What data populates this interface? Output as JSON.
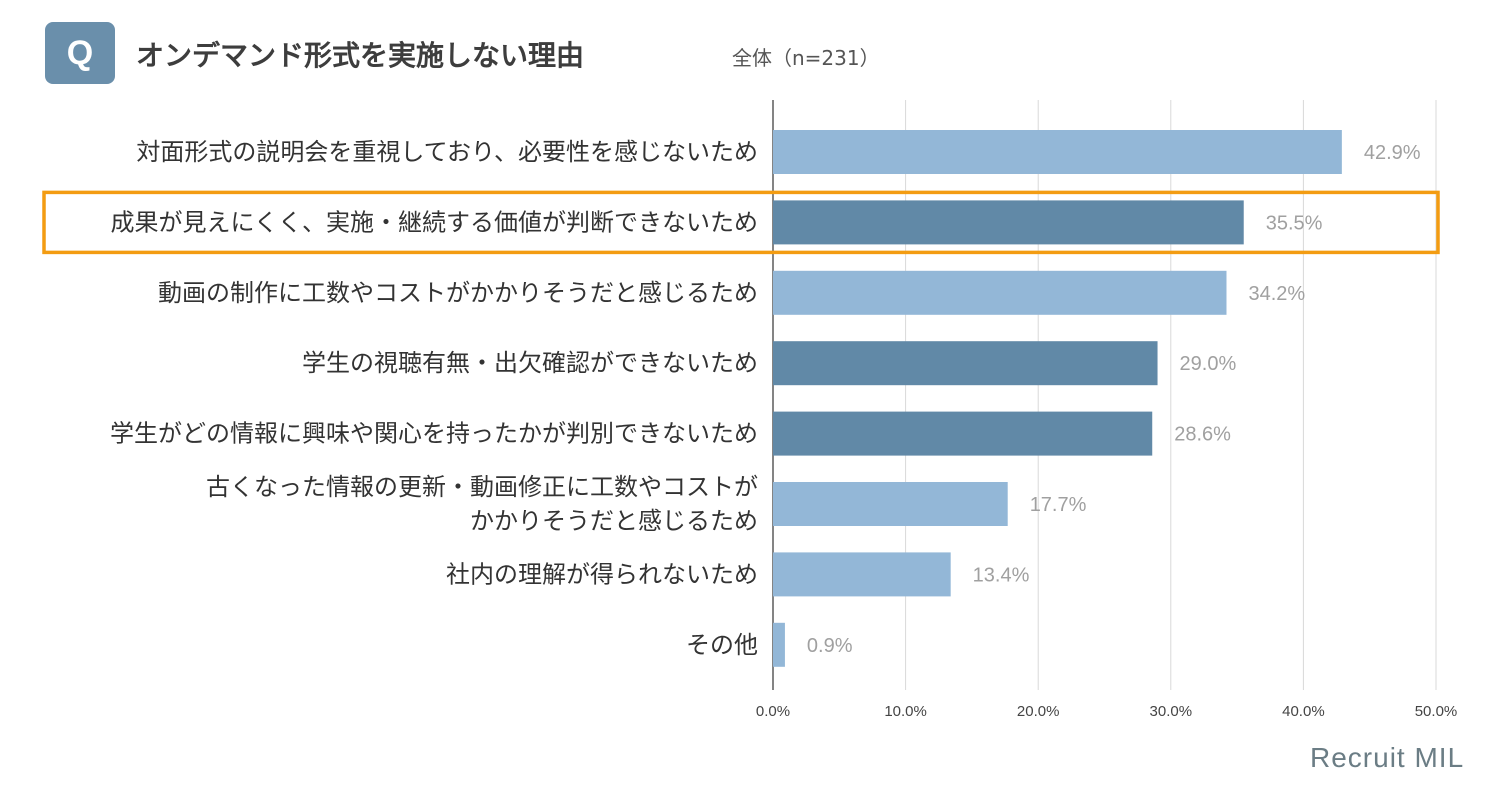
{
  "header": {
    "badge": "Q",
    "title": "オンデマンド形式を実施しない理由",
    "subtitle": "全体（n=231）"
  },
  "brand": "Recruit MIL",
  "colors": {
    "light_bar": "#93b7d7",
    "dark_bar": "#6189a7",
    "highlight": "#f39c12",
    "value_label": "#a0a0a0",
    "grid": "#d9d9d9"
  },
  "chart_data": {
    "type": "bar",
    "orientation": "horizontal",
    "categories": [
      [
        "対面形式の説明会を重視しており、必要性を感じないため"
      ],
      [
        "成果が見えにくく、実施・継続する価値が判断できないため"
      ],
      [
        "動画の制作に工数やコストがかかりそうだと感じるため"
      ],
      [
        "学生の視聴有無・出欠確認ができないため"
      ],
      [
        "学生がどの情報に興味や関心を持ったかが判別できないため"
      ],
      [
        "古くなった情報の更新・動画修正に工数やコストが",
        "かかりそうだと感じるため"
      ],
      [
        "社内の理解が得られないため"
      ],
      [
        "その他"
      ]
    ],
    "values": [
      42.9,
      35.5,
      34.2,
      29.0,
      28.6,
      17.7,
      13.4,
      0.9
    ],
    "value_labels": [
      "42.9%",
      "35.5%",
      "34.2%",
      "29.0%",
      "28.6%",
      "17.7%",
      "13.4%",
      "0.9%"
    ],
    "bar_shade": [
      "light",
      "dark",
      "light",
      "dark",
      "dark",
      "light",
      "light",
      "light"
    ],
    "highlighted_index": 1,
    "xlim": [
      0,
      50
    ],
    "xticks": [
      "0.0%",
      "10.0%",
      "20.0%",
      "30.0%",
      "40.0%",
      "50.0%"
    ],
    "grid": true
  }
}
